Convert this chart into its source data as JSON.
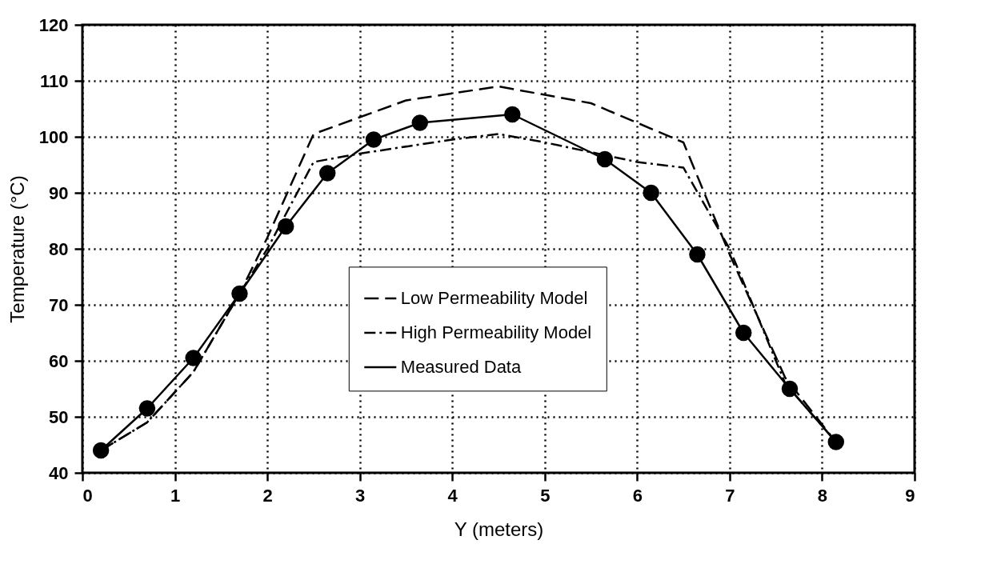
{
  "chart_data": {
    "type": "line",
    "xlabel": "Y (meters)",
    "ylabel": "Temperature (°C)",
    "xlim": [
      0,
      9
    ],
    "ylim": [
      40,
      120
    ],
    "xticks": [
      0,
      1,
      2,
      3,
      4,
      5,
      6,
      7,
      8,
      9
    ],
    "yticks": [
      40,
      50,
      60,
      70,
      80,
      90,
      100,
      110,
      120
    ],
    "grid": true,
    "legend": "bottom",
    "series": [
      {
        "name": "Low Permeability Model",
        "color": "#000000",
        "line_style": "dashed",
        "marker": "none",
        "x": [
          0.2,
          0.7,
          1.2,
          1.7,
          2.0,
          2.5,
          3.5,
          4.5,
          5.5,
          6.5,
          7.0,
          7.6,
          8.15
        ],
        "values": [
          44,
          49,
          58,
          72,
          82,
          100.5,
          106.5,
          109,
          106,
          99,
          79,
          57,
          45.5
        ]
      },
      {
        "name": "High Permeability Model",
        "color": "#000000",
        "line_style": "dotted",
        "marker": "none",
        "x": [
          0.2,
          0.7,
          1.2,
          1.7,
          2.0,
          2.5,
          3.0,
          4.0,
          4.5,
          5.0,
          6.0,
          6.5,
          7.0,
          7.6,
          8.15
        ],
        "values": [
          44,
          49,
          58,
          72,
          80,
          95.5,
          97,
          99.5,
          100.5,
          99,
          95.5,
          94.5,
          80,
          56,
          45.5
        ]
      },
      {
        "name": "Measured Data",
        "color": "#000000",
        "line_style": "solid",
        "marker": "circle",
        "x": [
          0.2,
          0.7,
          1.2,
          1.7,
          2.2,
          2.65,
          3.15,
          3.65,
          4.65,
          5.65,
          6.15,
          6.65,
          7.15,
          7.65,
          8.15
        ],
        "values": [
          44,
          51.5,
          60.5,
          72,
          84,
          93.5,
          99.5,
          102.5,
          104,
          96,
          90,
          79,
          65,
          55,
          45.5
        ]
      }
    ]
  }
}
